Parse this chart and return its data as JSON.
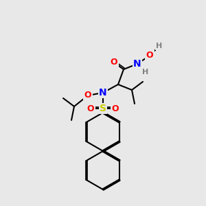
{
  "bg_color": "#e8e8e8",
  "bond_color": "#000000",
  "bond_lw": 1.5,
  "font_size": 9,
  "colors": {
    "O": "#ff0000",
    "N": "#0000ff",
    "S": "#cccc00",
    "H": "#808080",
    "C": "#000000"
  },
  "figsize": [
    3.0,
    3.0
  ],
  "dpi": 100
}
